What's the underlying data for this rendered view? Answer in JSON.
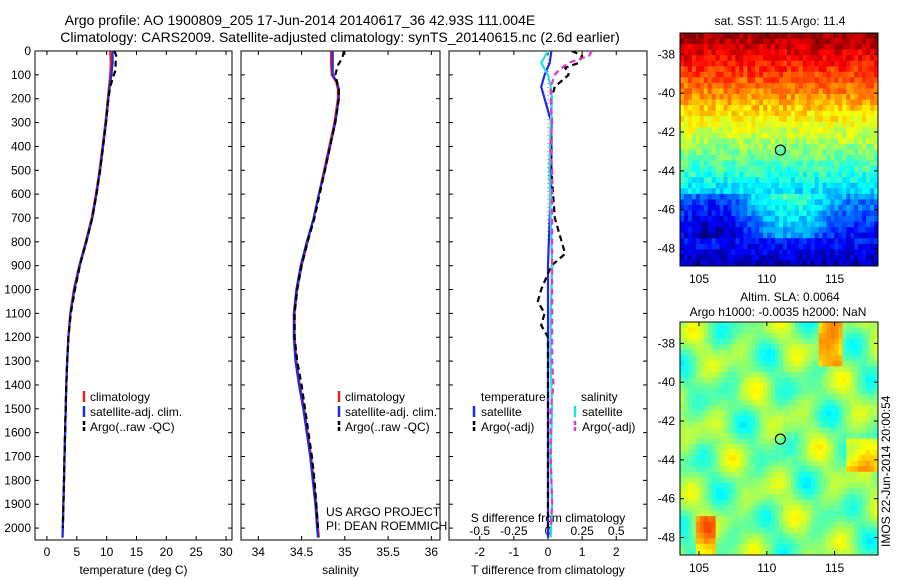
{
  "header": {
    "line1": "Argo profile: AO 1900809_205 17-Jun-2014 20140617_36 42.93S 111.004E",
    "line2": "Climatology: CARS2009. Satellite-adjusted climatology: synTS_20140615.nc (2.6d earlier)"
  },
  "depth_ticks": [
    "0",
    "100",
    "200",
    "300",
    "400",
    "500",
    "600",
    "700",
    "800",
    "900",
    "1000",
    "1100",
    "1200",
    "1300",
    "1400",
    "1500",
    "1600",
    "1700",
    "1800",
    "1900",
    "2000"
  ],
  "colors": {
    "climatology": "#e8211e",
    "satellite": "#1b2be8",
    "argo": "#000000",
    "sal_sat": "#22e0e0",
    "sal_argo": "#e832d4"
  },
  "credit": {
    "line1": "US ARGO PROJECT",
    "line2": "PI: DEAN ROEMMICH"
  },
  "timestamp": "IMOS 22-Jun-2014 20:00:54",
  "chart_data": [
    {
      "type": "line",
      "xlabel": "temperature (deg C)",
      "xlim": [
        -2,
        31
      ],
      "ylim": [
        2050,
        0
      ],
      "xticks": [
        0,
        5,
        10,
        15,
        20,
        25,
        30
      ],
      "legend": {
        "placement": "bottom-center",
        "entries": [
          "climatology",
          "satellite-adj. clim.",
          "Argo(..raw -QC)"
        ]
      },
      "series": [
        {
          "name": "climatology",
          "depth": [
            0,
            50,
            100,
            150,
            200,
            300,
            400,
            500,
            600,
            700,
            800,
            900,
            1000,
            1100,
            1200,
            1300,
            1400,
            1500,
            1600,
            1700,
            1800,
            1900,
            2000,
            2040
          ],
          "values": [
            10.6,
            10.7,
            10.6,
            10.4,
            10.2,
            9.8,
            9.3,
            8.8,
            8.2,
            7.5,
            6.5,
            5.4,
            4.5,
            3.9,
            3.6,
            3.4,
            3.25,
            3.15,
            3.05,
            2.95,
            2.85,
            2.75,
            2.65,
            2.6
          ]
        },
        {
          "name": "satellite-adj. clim.",
          "depth": [
            0,
            50,
            100,
            150,
            200,
            300,
            400,
            500,
            600,
            700,
            800,
            900,
            1000,
            1100,
            1200,
            1300,
            1400,
            1500,
            1600,
            1700,
            1800,
            1900,
            2000,
            2040
          ],
          "values": [
            11.0,
            11.0,
            10.8,
            10.5,
            10.3,
            9.9,
            9.4,
            8.9,
            8.3,
            7.6,
            6.6,
            5.5,
            4.6,
            3.95,
            3.6,
            3.4,
            3.25,
            3.15,
            3.05,
            2.95,
            2.85,
            2.75,
            2.65,
            2.6
          ]
        },
        {
          "name": "Argo(..raw -QC)",
          "depth": [
            0,
            20,
            50,
            80,
            100,
            150,
            200,
            300,
            400,
            500,
            600,
            700,
            800,
            900,
            1000,
            1100,
            1200,
            1300,
            1400,
            1500,
            1600,
            1700,
            1800,
            1900,
            2000
          ],
          "values": [
            11.3,
            11.6,
            11.5,
            11.5,
            11.2,
            10.6,
            10.3,
            9.9,
            9.4,
            8.9,
            8.3,
            7.6,
            6.6,
            5.5,
            4.7,
            4.0,
            3.6,
            3.4,
            3.25,
            3.15,
            3.05,
            2.95,
            2.85,
            2.75,
            2.65
          ]
        }
      ]
    },
    {
      "type": "line",
      "xlabel": "salinity",
      "xlim": [
        33.8,
        36.1
      ],
      "ylim": [
        2050,
        0
      ],
      "xticks": [
        34,
        34.5,
        35,
        35.5,
        36
      ],
      "legend": {
        "placement": "bottom-center",
        "entries": [
          "climatology",
          "satellite-adj. clim.",
          "Argo(..raw -QC)"
        ]
      },
      "series": [
        {
          "name": "climatology",
          "depth": [
            0,
            50,
            100,
            130,
            160,
            200,
            300,
            400,
            500,
            600,
            700,
            800,
            900,
            1000,
            1100,
            1200,
            1300,
            1400,
            1500,
            1600,
            1700,
            1800,
            1900,
            2000,
            2040
          ],
          "values": [
            34.84,
            34.84,
            34.85,
            34.9,
            34.92,
            34.92,
            34.88,
            34.82,
            34.76,
            34.7,
            34.64,
            34.57,
            34.5,
            34.45,
            34.42,
            34.42,
            34.44,
            34.48,
            34.53,
            34.57,
            34.61,
            34.64,
            34.67,
            34.69,
            34.7
          ]
        },
        {
          "name": "satellite-adj. clim.",
          "depth": [
            0,
            50,
            100,
            130,
            160,
            200,
            300,
            400,
            500,
            600,
            700,
            800,
            900,
            1000,
            1100,
            1200,
            1300,
            1400,
            1500,
            1600,
            1700,
            1800,
            1900,
            2000,
            2040
          ],
          "values": [
            34.86,
            34.86,
            34.86,
            34.91,
            34.93,
            34.93,
            34.89,
            34.83,
            34.77,
            34.7,
            34.64,
            34.56,
            34.49,
            34.44,
            34.41,
            34.41,
            34.43,
            34.47,
            34.52,
            34.56,
            34.6,
            34.63,
            34.66,
            34.68,
            34.69
          ]
        },
        {
          "name": "Argo(..raw -QC)",
          "depth": [
            0,
            30,
            60,
            100,
            130,
            160,
            200,
            300,
            400,
            500,
            600,
            700,
            800,
            900,
            1000,
            1100,
            1200,
            1300,
            1400,
            1450,
            1500,
            1600,
            1700,
            1800,
            1900,
            2000
          ],
          "values": [
            34.99,
            34.97,
            34.92,
            34.89,
            34.91,
            34.93,
            34.93,
            34.89,
            34.83,
            34.77,
            34.71,
            34.65,
            34.57,
            34.5,
            34.45,
            34.42,
            34.42,
            34.45,
            34.5,
            34.52,
            34.54,
            34.58,
            34.62,
            34.65,
            34.67,
            34.69
          ]
        }
      ]
    },
    {
      "type": "line",
      "xlabel": "T difference from climatology",
      "xlabel_top": "S difference from climatology",
      "xlim": [
        -2.9,
        2.9
      ],
      "ylim": [
        2050,
        0
      ],
      "xticks": [
        -2,
        -1,
        0,
        1,
        2
      ],
      "xticks_top": [
        "-0.5",
        "-0.25",
        "0",
        "0.25",
        "0.5"
      ],
      "legend": {
        "placement": "bottom-center",
        "temperature": {
          "title": "temperature",
          "entries": [
            "satellite",
            "Argo(-adj)"
          ]
        },
        "salinity": {
          "title": "salinity",
          "entries": [
            "satellite",
            "Argo(-adj)"
          ]
        }
      },
      "series": [
        {
          "name": "satellite",
          "group": "temperature",
          "depth": [
            0,
            50,
            100,
            150,
            200,
            300,
            400,
            500,
            700,
            900,
            1100,
            1300,
            1500,
            1700,
            1900,
            2040
          ],
          "values": [
            0.1,
            0.05,
            -0.1,
            -0.2,
            -0.1,
            0.1,
            0.1,
            0.1,
            0.05,
            0.0,
            0.0,
            0.0,
            0.0,
            0.0,
            0.0,
            0.0
          ]
        },
        {
          "name": "Argo(-adj)",
          "group": "temperature",
          "depth": [
            0,
            20,
            50,
            70,
            90,
            100,
            150,
            200,
            300,
            400,
            500,
            700,
            800,
            850,
            900,
            1000,
            1050,
            1100,
            1150,
            1200,
            1300,
            1400,
            1500,
            1700,
            1900,
            2000
          ],
          "values": [
            0.7,
            1.0,
            0.9,
            0.5,
            0.6,
            0.6,
            0.2,
            0.1,
            0.1,
            0.1,
            0.1,
            0.2,
            0.4,
            0.5,
            0.1,
            -0.2,
            -0.3,
            -0.1,
            -0.2,
            0.0,
            0.0,
            0.0,
            0.0,
            0.0,
            0.0,
            0.0
          ]
        },
        {
          "name": "satellite",
          "group": "salinity",
          "depth": [
            0,
            50,
            100,
            150,
            200,
            300,
            500,
            700,
            900,
            1100,
            1300,
            1500,
            1700,
            1900,
            2040
          ],
          "values": [
            0.0,
            -0.05,
            0.0,
            0.02,
            0.03,
            0.02,
            0.01,
            0.02,
            0.03,
            0.02,
            0.02,
            0.03,
            0.02,
            0.03,
            0.02
          ]
        },
        {
          "name": "Argo(-adj)",
          "group": "salinity",
          "depth": [
            0,
            20,
            50,
            80,
            100,
            150,
            200,
            300,
            400,
            500,
            700,
            900,
            1100,
            1200,
            1300,
            1400,
            1500,
            1700,
            1900,
            2000
          ],
          "values": [
            0.32,
            0.3,
            0.15,
            0.08,
            0.05,
            0.02,
            0.02,
            0.03,
            0.02,
            0.03,
            0.03,
            0.03,
            0.03,
            0.03,
            0.03,
            0.04,
            0.02,
            0.02,
            0.03,
            0.02
          ]
        }
      ]
    },
    {
      "type": "heatmap",
      "title": "sat. SST: 11.5 Argo: 11.4",
      "xlim": [
        103.6,
        118.2
      ],
      "ylim": [
        -48.9,
        -36.9
      ],
      "xticks": [
        "105",
        "110",
        "115"
      ],
      "yticks": [
        "-38",
        "-40",
        "-42",
        "-44",
        "-46",
        "-48"
      ],
      "marker": {
        "lon": 111.0,
        "lat": -42.93
      }
    },
    {
      "type": "heatmap",
      "title": "Altim. SLA: 0.0064",
      "subtitle": "Argo h1000: -0.0035 h2000: NaN",
      "xlim": [
        103.6,
        118.2
      ],
      "ylim": [
        -48.9,
        -36.9
      ],
      "xticks": [
        "105",
        "110",
        "115"
      ],
      "yticks": [
        "-38",
        "-40",
        "-42",
        "-44",
        "-46",
        "-48"
      ],
      "marker": {
        "lon": 111.0,
        "lat": -42.93
      }
    }
  ]
}
